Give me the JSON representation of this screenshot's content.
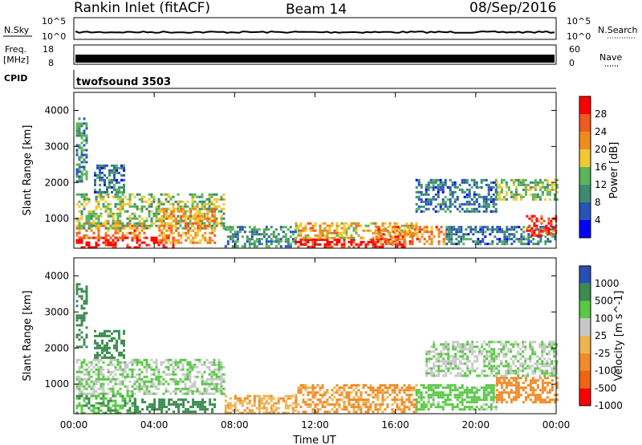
{
  "header": {
    "title": "Rankin Inlet (fitACF)",
    "beam": "Beam 14",
    "date": "08/Sep/2016"
  },
  "nsky_panel": {
    "left_label": "N.Sky",
    "right_label": "N.Search",
    "left_ticks": [
      "10^5",
      "10^0"
    ],
    "right_ticks": [
      "10^5",
      "10^0"
    ]
  },
  "freq_panel": {
    "left_label_top": "Freq.",
    "left_label_unit": "[MHz]",
    "left_ticks": [
      "18",
      "8"
    ],
    "right_label": "Nave",
    "right_ticks": [
      "60",
      "0"
    ]
  },
  "cpid_panel": {
    "label": "CPID",
    "program": "twofsound 3503"
  },
  "x_axis": {
    "label": "Time UT",
    "ticks": [
      "00:00",
      "04:00",
      "08:00",
      "12:00",
      "16:00",
      "20:00",
      "00:00"
    ]
  },
  "power_panel": {
    "ylabel": "Slant Range [km]",
    "yticks": [
      "4000",
      "3000",
      "2000",
      "1000"
    ],
    "colorbar_label": "Power [dB]",
    "colorbar_ticks": [
      "28",
      "24",
      "20",
      "16",
      "12",
      "8",
      "4"
    ]
  },
  "velocity_panel": {
    "ylabel": "Slant Range [km]",
    "yticks": [
      "4000",
      "3000",
      "2000",
      "1000"
    ],
    "colorbar_label": "Velocity [m s^-1]",
    "colorbar_ticks": [
      "1000",
      "500",
      "100",
      "25",
      "-25",
      "-100",
      "-500",
      "-1000"
    ]
  },
  "colors": {
    "power_scale": [
      "#0000ff",
      "#2854b8",
      "#3c8c6e",
      "#5ab45a",
      "#f0c832",
      "#f08c1e",
      "#f05a1e",
      "#ff0000"
    ],
    "velocity_scale": [
      "#2850b4",
      "#3c8c50",
      "#5ac846",
      "#c8c8c8",
      "#f0b450",
      "#f08c28",
      "#f06414",
      "#ff0000"
    ]
  },
  "chart_data": [
    {
      "type": "line",
      "title": "N.Sky",
      "x": [
        0,
        4,
        8,
        12,
        16,
        20,
        24
      ],
      "y_scale": "log",
      "ylim": [
        1,
        100000
      ]
    },
    {
      "type": "heatmap",
      "title": "Power [dB]",
      "xlabel": "Time UT",
      "ylabel": "Slant Range [km]",
      "xlim": [
        0,
        24
      ],
      "ylim": [
        180,
        4500
      ],
      "zlim": [
        0,
        30
      ],
      "regions": [
        {
          "t0": 0.1,
          "t1": 5.0,
          "r0": 200,
          "r1": 500,
          "level": 30
        },
        {
          "t0": 0.1,
          "t1": 3.5,
          "r0": 450,
          "r1": 900,
          "level": 22
        },
        {
          "t0": 0.1,
          "t1": 7.5,
          "r0": 700,
          "r1": 1700,
          "level": 14
        },
        {
          "t0": 4.2,
          "t1": 7.0,
          "r0": 300,
          "r1": 1300,
          "level": 20
        },
        {
          "t0": 0.1,
          "t1": 0.6,
          "r0": 2000,
          "r1": 3800,
          "level": 10
        },
        {
          "t0": 1.0,
          "t1": 2.5,
          "r0": 1700,
          "r1": 2500,
          "level": 8
        },
        {
          "t0": 7.5,
          "t1": 11.0,
          "r0": 200,
          "r1": 800,
          "level": 10
        },
        {
          "t0": 11.0,
          "t1": 16.5,
          "r0": 200,
          "r1": 450,
          "level": 28
        },
        {
          "t0": 11.0,
          "t1": 17.0,
          "r0": 450,
          "r1": 900,
          "level": 18
        },
        {
          "t0": 15.0,
          "t1": 18.5,
          "r0": 300,
          "r1": 800,
          "level": 22
        },
        {
          "t0": 18.5,
          "t1": 24.0,
          "r0": 300,
          "r1": 800,
          "level": 8
        },
        {
          "t0": 17.0,
          "t1": 21.0,
          "r0": 1200,
          "r1": 2100,
          "level": 8
        },
        {
          "t0": 21.0,
          "t1": 24.0,
          "r0": 1500,
          "r1": 2100,
          "level": 14
        },
        {
          "t0": 22.5,
          "t1": 24.0,
          "r0": 500,
          "r1": 1100,
          "level": 26
        }
      ]
    },
    {
      "type": "heatmap",
      "title": "Velocity [m s^-1]",
      "xlabel": "Time UT",
      "ylabel": "Slant Range [km]",
      "xlim": [
        0,
        24
      ],
      "ylim": [
        180,
        4500
      ],
      "zlim": [
        -1000,
        1000
      ],
      "regions": [
        {
          "t0": 0.1,
          "t1": 7.5,
          "r0": 700,
          "r1": 1700,
          "level": 25
        },
        {
          "t0": 0.1,
          "t1": 3.0,
          "r0": 200,
          "r1": 700,
          "level": 100
        },
        {
          "t0": 3.0,
          "t1": 7.0,
          "r0": 200,
          "r1": 600,
          "level": 200
        },
        {
          "t0": 0.1,
          "t1": 0.6,
          "r0": 2000,
          "r1": 3800,
          "level": 300
        },
        {
          "t0": 1.0,
          "t1": 2.5,
          "r0": 1700,
          "r1": 2500,
          "level": 150
        },
        {
          "t0": 7.5,
          "t1": 11.0,
          "r0": 200,
          "r1": 700,
          "level": -80
        },
        {
          "t0": 11.0,
          "t1": 17.0,
          "r0": 200,
          "r1": 1000,
          "level": -120
        },
        {
          "t0": 17.0,
          "t1": 21.0,
          "r0": 300,
          "r1": 1000,
          "level": 60
        },
        {
          "t0": 17.5,
          "t1": 24.0,
          "r0": 1200,
          "r1": 2200,
          "level": 20
        },
        {
          "t0": 21.0,
          "t1": 24.0,
          "r0": 500,
          "r1": 1200,
          "level": -150
        }
      ]
    }
  ]
}
